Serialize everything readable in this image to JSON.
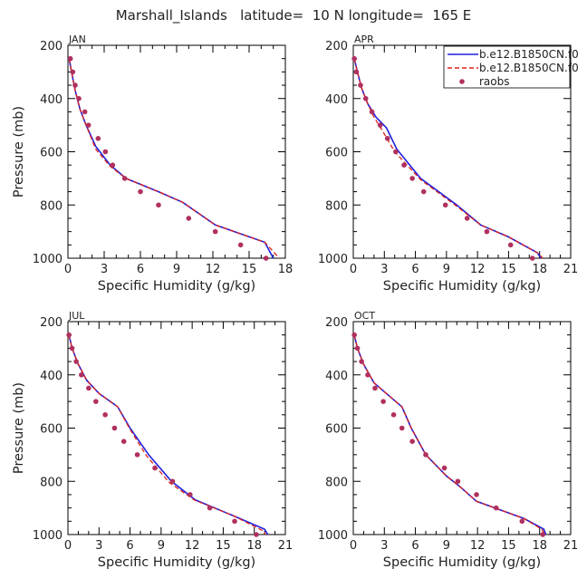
{
  "figure": {
    "title": "Marshall_Islands   latitude=  10 N longitude=  165 E",
    "legend": {
      "placement": "top-right of APR panel",
      "entries": [
        {
          "label": "b.e12.B1850CN.f0",
          "style": "solid",
          "color": "#1f1fdd"
        },
        {
          "label": "b.e12.B1850CN.f0",
          "style": "dashed",
          "color": "#e0201a"
        },
        {
          "label": "raobs",
          "style": "dots",
          "color": "#b03060"
        }
      ]
    }
  },
  "chart_data": [
    {
      "type": "line",
      "panel": "JAN",
      "xlabel": "Specific Humidity (g/kg)",
      "ylabel": "Pressure (mb)",
      "xlim": [
        0,
        18
      ],
      "xticks": [
        0,
        3,
        6,
        9,
        12,
        15,
        18
      ],
      "ylim": [
        1000,
        200
      ],
      "yticks": [
        200,
        400,
        600,
        800,
        1000
      ],
      "series": [
        {
          "style": "solid",
          "color": "#1f1fdd",
          "points": [
            [
              0.1,
              250
            ],
            [
              0.3,
              300
            ],
            [
              0.6,
              370
            ],
            [
              1.0,
              440
            ],
            [
              1.5,
              500
            ],
            [
              2.3,
              580
            ],
            [
              3.5,
              650
            ],
            [
              4.8,
              700
            ],
            [
              7.5,
              750
            ],
            [
              9.5,
              790
            ],
            [
              12.2,
              875
            ],
            [
              16.3,
              940
            ],
            [
              17.0,
              1000
            ]
          ]
        },
        {
          "style": "dashed",
          "color": "#e0201a",
          "points": [
            [
              0.1,
              250
            ],
            [
              0.3,
              300
            ],
            [
              0.6,
              370
            ],
            [
              1.0,
              440
            ],
            [
              1.5,
              500
            ],
            [
              2.3,
              590
            ],
            [
              3.5,
              655
            ],
            [
              4.8,
              700
            ],
            [
              7.5,
              750
            ],
            [
              9.5,
              790
            ],
            [
              12.2,
              875
            ],
            [
              16.3,
              940
            ],
            [
              17.5,
              1000
            ]
          ]
        },
        {
          "style": "dots",
          "color": "#b03060",
          "points": [
            [
              0.2,
              250
            ],
            [
              0.4,
              300
            ],
            [
              0.6,
              350
            ],
            [
              0.9,
              400
            ],
            [
              1.4,
              450
            ],
            [
              1.7,
              500
            ],
            [
              2.5,
              550
            ],
            [
              3.1,
              600
            ],
            [
              3.7,
              650
            ],
            [
              4.7,
              700
            ],
            [
              6.0,
              750
            ],
            [
              7.5,
              800
            ],
            [
              10.0,
              850
            ],
            [
              12.2,
              900
            ],
            [
              14.3,
              950
            ],
            [
              16.4,
              1000
            ]
          ]
        }
      ]
    },
    {
      "type": "line",
      "panel": "APR",
      "xlabel": "Specific Humidity (g/kg)",
      "ylabel": "",
      "xlim": [
        0,
        21
      ],
      "xticks": [
        0,
        3,
        6,
        9,
        12,
        15,
        18,
        21
      ],
      "ylim": [
        1000,
        200
      ],
      "yticks": [
        200,
        400,
        600,
        800,
        1000
      ],
      "series": [
        {
          "style": "solid",
          "color": "#1f1fdd",
          "points": [
            [
              0.1,
              250
            ],
            [
              0.4,
              300
            ],
            [
              0.8,
              360
            ],
            [
              1.4,
              420
            ],
            [
              2.2,
              470
            ],
            [
              3.2,
              510
            ],
            [
              4.2,
              590
            ],
            [
              6.5,
              700
            ],
            [
              10.0,
              800
            ],
            [
              12.3,
              875
            ],
            [
              15.0,
              920
            ],
            [
              17.8,
              980
            ],
            [
              18.1,
              1000
            ]
          ]
        },
        {
          "style": "dashed",
          "color": "#e0201a",
          "points": [
            [
              0.1,
              250
            ],
            [
              0.4,
              300
            ],
            [
              0.8,
              360
            ],
            [
              1.4,
              420
            ],
            [
              2.0,
              470
            ],
            [
              2.8,
              520
            ],
            [
              4.0,
              600
            ],
            [
              6.5,
              705
            ],
            [
              10.0,
              805
            ],
            [
              12.3,
              875
            ],
            [
              15.0,
              920
            ],
            [
              17.8,
              980
            ],
            [
              18.3,
              1000
            ]
          ]
        },
        {
          "style": "dots",
          "color": "#b03060",
          "points": [
            [
              0.1,
              250
            ],
            [
              0.3,
              300
            ],
            [
              0.7,
              350
            ],
            [
              1.2,
              400
            ],
            [
              1.8,
              450
            ],
            [
              2.6,
              500
            ],
            [
              3.3,
              550
            ],
            [
              4.1,
              600
            ],
            [
              4.9,
              650
            ],
            [
              5.7,
              700
            ],
            [
              6.8,
              750
            ],
            [
              8.9,
              800
            ],
            [
              11.0,
              850
            ],
            [
              12.9,
              900
            ],
            [
              15.2,
              950
            ],
            [
              17.3,
              1000
            ]
          ]
        }
      ]
    },
    {
      "type": "line",
      "panel": "JUL",
      "xlabel": "Specific Humidity (g/kg)",
      "ylabel": "Pressure (mb)",
      "xlim": [
        0,
        21
      ],
      "xticks": [
        0,
        3,
        6,
        9,
        12,
        15,
        18,
        21
      ],
      "ylim": [
        1000,
        200
      ],
      "yticks": [
        200,
        400,
        600,
        800,
        1000
      ],
      "series": [
        {
          "style": "solid",
          "color": "#1f1fdd",
          "points": [
            [
              0.1,
              250
            ],
            [
              0.4,
              300
            ],
            [
              1.0,
              360
            ],
            [
              1.8,
              420
            ],
            [
              3.0,
              470
            ],
            [
              4.8,
              520
            ],
            [
              6.0,
              600
            ],
            [
              7.8,
              700
            ],
            [
              10.0,
              800
            ],
            [
              12.3,
              870
            ],
            [
              16.0,
              930
            ],
            [
              19.0,
              980
            ],
            [
              19.3,
              1000
            ]
          ]
        },
        {
          "style": "dashed",
          "color": "#e0201a",
          "points": [
            [
              0.1,
              250
            ],
            [
              0.4,
              300
            ],
            [
              1.0,
              360
            ],
            [
              1.8,
              420
            ],
            [
              3.0,
              470
            ],
            [
              4.8,
              520
            ],
            [
              6.0,
              605
            ],
            [
              7.6,
              705
            ],
            [
              9.8,
              805
            ],
            [
              12.2,
              870
            ],
            [
              16.0,
              930
            ],
            [
              18.8,
              985
            ],
            [
              19.1,
              1000
            ]
          ]
        },
        {
          "style": "dots",
          "color": "#b03060",
          "points": [
            [
              0.1,
              250
            ],
            [
              0.4,
              300
            ],
            [
              0.8,
              350
            ],
            [
              1.3,
              400
            ],
            [
              2.0,
              450
            ],
            [
              2.7,
              500
            ],
            [
              3.6,
              550
            ],
            [
              4.5,
              600
            ],
            [
              5.4,
              650
            ],
            [
              6.7,
              700
            ],
            [
              8.4,
              750
            ],
            [
              10.1,
              800
            ],
            [
              11.8,
              850
            ],
            [
              13.7,
              900
            ],
            [
              16.1,
              950
            ],
            [
              18.2,
              1000
            ]
          ]
        }
      ]
    },
    {
      "type": "line",
      "panel": "OCT",
      "xlabel": "Specific Humidity (g/kg)",
      "ylabel": "",
      "xlim": [
        0,
        21
      ],
      "xticks": [
        0,
        3,
        6,
        9,
        12,
        15,
        18,
        21
      ],
      "ylim": [
        1000,
        200
      ],
      "yticks": [
        200,
        400,
        600,
        800,
        1000
      ],
      "series": [
        {
          "style": "solid",
          "color": "#1f1fdd",
          "points": [
            [
              0.1,
              250
            ],
            [
              0.4,
              300
            ],
            [
              1.0,
              360
            ],
            [
              2.0,
              430
            ],
            [
              3.5,
              480
            ],
            [
              4.7,
              520
            ],
            [
              5.6,
              600
            ],
            [
              7.0,
              700
            ],
            [
              9.0,
              780
            ],
            [
              10.3,
              820
            ],
            [
              11.9,
              875
            ],
            [
              16.5,
              940
            ],
            [
              18.4,
              980
            ],
            [
              18.6,
              1000
            ]
          ]
        },
        {
          "style": "dashed",
          "color": "#e0201a",
          "points": [
            [
              0.1,
              250
            ],
            [
              0.4,
              300
            ],
            [
              1.0,
              360
            ],
            [
              2.0,
              430
            ],
            [
              3.5,
              480
            ],
            [
              4.7,
              520
            ],
            [
              5.6,
              600
            ],
            [
              7.0,
              700
            ],
            [
              9.0,
              780
            ],
            [
              10.3,
              820
            ],
            [
              11.9,
              875
            ],
            [
              16.5,
              940
            ],
            [
              18.2,
              980
            ],
            [
              18.5,
              1000
            ]
          ]
        },
        {
          "style": "dots",
          "color": "#b03060",
          "points": [
            [
              0.1,
              250
            ],
            [
              0.4,
              300
            ],
            [
              0.8,
              350
            ],
            [
              1.4,
              400
            ],
            [
              2.1,
              450
            ],
            [
              2.9,
              500
            ],
            [
              3.9,
              550
            ],
            [
              4.7,
              600
            ],
            [
              5.7,
              650
            ],
            [
              7.0,
              700
            ],
            [
              8.8,
              750
            ],
            [
              10.1,
              800
            ],
            [
              11.9,
              850
            ],
            [
              13.8,
              900
            ],
            [
              16.3,
              950
            ],
            [
              18.3,
              1000
            ]
          ]
        }
      ]
    }
  ]
}
